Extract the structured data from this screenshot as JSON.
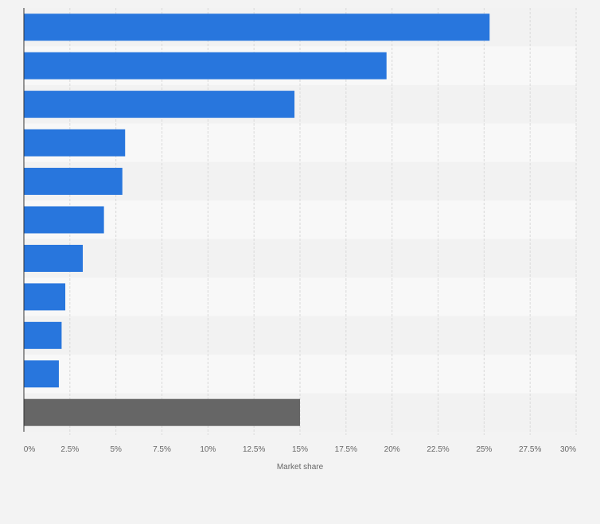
{
  "chart_data": {
    "type": "bar",
    "orientation": "horizontal",
    "title": "",
    "xlabel": "Market share",
    "ylabel": "",
    "xlim": [
      0,
      30
    ],
    "x_ticks": [
      0,
      2.5,
      5,
      7.5,
      10,
      12.5,
      15,
      17.5,
      20,
      22.5,
      25,
      27.5,
      30
    ],
    "x_tick_labels": [
      "0%",
      "2.5%",
      "5%",
      "7.5%",
      "10%",
      "12.5%",
      "15%",
      "17.5%",
      "20%",
      "22.5%",
      "25%",
      "27.5%",
      "30%"
    ],
    "values": [
      25.3,
      19.7,
      14.7,
      5.5,
      5.35,
      4.35,
      3.2,
      2.25,
      2.05,
      1.9,
      15.0
    ],
    "categories": [
      "",
      "",
      "",
      "",
      "",
      "",
      "",
      "",
      "",
      "",
      ""
    ],
    "bar_colors": [
      "#2876dd",
      "#2876dd",
      "#2876dd",
      "#2876dd",
      "#2876dd",
      "#2876dd",
      "#2876dd",
      "#2876dd",
      "#2876dd",
      "#2876dd",
      "#666666"
    ],
    "grid": true
  },
  "colors": {
    "page_background": "#f3f3f3",
    "band_dark": "#f2f2f2",
    "band_light": "#f8f8f8",
    "grid_line": "#d9d9d9",
    "axis_line": "#333333",
    "tick_text": "#666666"
  }
}
